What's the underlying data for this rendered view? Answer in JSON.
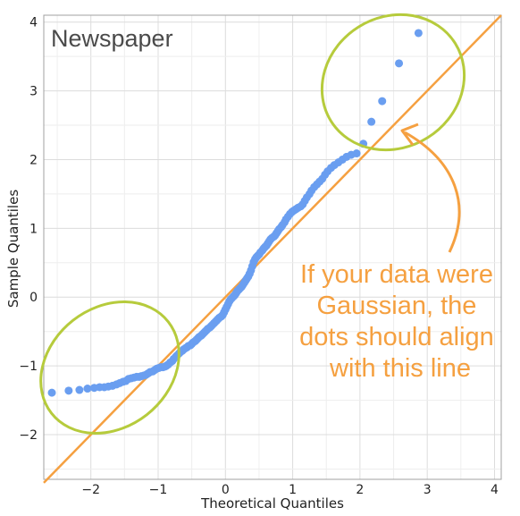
{
  "chart_data": {
    "type": "scatter",
    "title": "Newspaper",
    "xlabel": "Theoretical Quantiles",
    "ylabel": "Sample Quantiles",
    "xlim": [
      -2.7,
      4.1
    ],
    "ylim": [
      -2.65,
      4.1
    ],
    "xticks": [
      -2,
      -1,
      0,
      1,
      2,
      3,
      4
    ],
    "yticks": [
      -2,
      -1,
      0,
      1,
      2,
      3,
      4
    ],
    "grid": true,
    "reference_line": {
      "slope": 1,
      "intercept": 0
    },
    "annotation": {
      "lines": [
        "If your data were",
        "Gaussian, the",
        "dots should align",
        "with this line"
      ]
    },
    "points": [
      [
        -2.58,
        -1.39
      ],
      [
        -2.33,
        -1.36
      ],
      [
        -2.17,
        -1.35
      ],
      [
        -2.05,
        -1.33
      ],
      [
        -1.95,
        -1.32
      ],
      [
        -1.87,
        -1.31
      ],
      [
        -1.8,
        -1.31
      ],
      [
        -1.74,
        -1.3
      ],
      [
        -1.68,
        -1.29
      ],
      [
        -1.62,
        -1.27
      ],
      [
        -1.57,
        -1.25
      ],
      [
        -1.52,
        -1.23
      ],
      [
        -1.48,
        -1.22
      ],
      [
        -1.44,
        -1.19
      ],
      [
        -1.4,
        -1.18
      ],
      [
        -1.36,
        -1.17
      ],
      [
        -1.32,
        -1.16
      ],
      [
        -1.28,
        -1.16
      ],
      [
        -1.25,
        -1.15
      ],
      [
        -1.21,
        -1.14
      ],
      [
        -1.18,
        -1.13
      ],
      [
        -1.15,
        -1.11
      ],
      [
        -1.12,
        -1.09
      ],
      [
        -1.08,
        -1.08
      ],
      [
        -1.05,
        -1.06
      ],
      [
        -1.02,
        -1.04
      ],
      [
        -0.99,
        -1.03
      ],
      [
        -0.96,
        -1.02
      ],
      [
        -0.93,
        -1.02
      ],
      [
        -0.9,
        -1.01
      ],
      [
        -0.88,
        -1.0
      ],
      [
        -0.85,
        -0.98
      ],
      [
        -0.82,
        -0.95
      ],
      [
        -0.79,
        -0.93
      ],
      [
        -0.77,
        -0.9
      ],
      [
        -0.74,
        -0.87
      ],
      [
        -0.72,
        -0.85
      ],
      [
        -0.69,
        -0.82
      ],
      [
        -0.67,
        -0.8
      ],
      [
        -0.64,
        -0.78
      ],
      [
        -0.62,
        -0.76
      ],
      [
        -0.59,
        -0.74
      ],
      [
        -0.57,
        -0.73
      ],
      [
        -0.55,
        -0.71
      ],
      [
        -0.52,
        -0.7
      ],
      [
        -0.5,
        -0.68
      ],
      [
        -0.48,
        -0.66
      ],
      [
        -0.45,
        -0.64
      ],
      [
        -0.43,
        -0.62
      ],
      [
        -0.41,
        -0.6
      ],
      [
        -0.39,
        -0.58
      ],
      [
        -0.36,
        -0.56
      ],
      [
        -0.34,
        -0.54
      ],
      [
        -0.32,
        -0.52
      ],
      [
        -0.3,
        -0.5
      ],
      [
        -0.28,
        -0.48
      ],
      [
        -0.26,
        -0.46
      ],
      [
        -0.23,
        -0.44
      ],
      [
        -0.21,
        -0.42
      ],
      [
        -0.19,
        -0.4
      ],
      [
        -0.17,
        -0.38
      ],
      [
        -0.15,
        -0.36
      ],
      [
        -0.13,
        -0.34
      ],
      [
        -0.11,
        -0.32
      ],
      [
        -0.09,
        -0.3
      ],
      [
        -0.06,
        -0.28
      ],
      [
        -0.04,
        -0.26
      ],
      [
        -0.02,
        -0.22
      ],
      [
        0.0,
        -0.18
      ],
      [
        0.02,
        -0.14
      ],
      [
        0.04,
        -0.1
      ],
      [
        0.06,
        -0.06
      ],
      [
        0.08,
        -0.03
      ],
      [
        0.1,
        -0.01
      ],
      [
        0.12,
        0.01
      ],
      [
        0.14,
        0.03
      ],
      [
        0.16,
        0.06
      ],
      [
        0.18,
        0.09
      ],
      [
        0.2,
        0.11
      ],
      [
        0.22,
        0.13
      ],
      [
        0.24,
        0.15
      ],
      [
        0.26,
        0.18
      ],
      [
        0.28,
        0.21
      ],
      [
        0.3,
        0.24
      ],
      [
        0.32,
        0.27
      ],
      [
        0.34,
        0.3
      ],
      [
        0.36,
        0.34
      ],
      [
        0.38,
        0.39
      ],
      [
        0.4,
        0.45
      ],
      [
        0.42,
        0.51
      ],
      [
        0.44,
        0.55
      ],
      [
        0.46,
        0.58
      ],
      [
        0.48,
        0.6
      ],
      [
        0.5,
        0.62
      ],
      [
        0.52,
        0.65
      ],
      [
        0.55,
        0.68
      ],
      [
        0.57,
        0.71
      ],
      [
        0.59,
        0.73
      ],
      [
        0.61,
        0.75
      ],
      [
        0.63,
        0.78
      ],
      [
        0.65,
        0.81
      ],
      [
        0.67,
        0.84
      ],
      [
        0.69,
        0.86
      ],
      [
        0.72,
        0.88
      ],
      [
        0.74,
        0.9
      ],
      [
        0.76,
        0.93
      ],
      [
        0.78,
        0.96
      ],
      [
        0.8,
        0.99
      ],
      [
        0.83,
        1.02
      ],
      [
        0.85,
        1.05
      ],
      [
        0.88,
        1.09
      ],
      [
        0.9,
        1.13
      ],
      [
        0.93,
        1.17
      ],
      [
        0.96,
        1.21
      ],
      [
        0.99,
        1.24
      ],
      [
        1.02,
        1.26
      ],
      [
        1.05,
        1.28
      ],
      [
        1.08,
        1.3
      ],
      [
        1.12,
        1.32
      ],
      [
        1.15,
        1.35
      ],
      [
        1.18,
        1.4
      ],
      [
        1.21,
        1.45
      ],
      [
        1.25,
        1.5
      ],
      [
        1.28,
        1.55
      ],
      [
        1.32,
        1.6
      ],
      [
        1.36,
        1.64
      ],
      [
        1.4,
        1.68
      ],
      [
        1.44,
        1.72
      ],
      [
        1.48,
        1.78
      ],
      [
        1.52,
        1.83
      ],
      [
        1.57,
        1.88
      ],
      [
        1.62,
        1.92
      ],
      [
        1.68,
        1.96
      ],
      [
        1.74,
        2.0
      ],
      [
        1.8,
        2.04
      ],
      [
        1.87,
        2.07
      ],
      [
        1.95,
        2.09
      ],
      [
        2.05,
        2.23
      ],
      [
        2.17,
        2.55
      ],
      [
        2.33,
        2.85
      ],
      [
        2.58,
        3.4
      ],
      [
        2.87,
        3.84
      ]
    ]
  }
}
